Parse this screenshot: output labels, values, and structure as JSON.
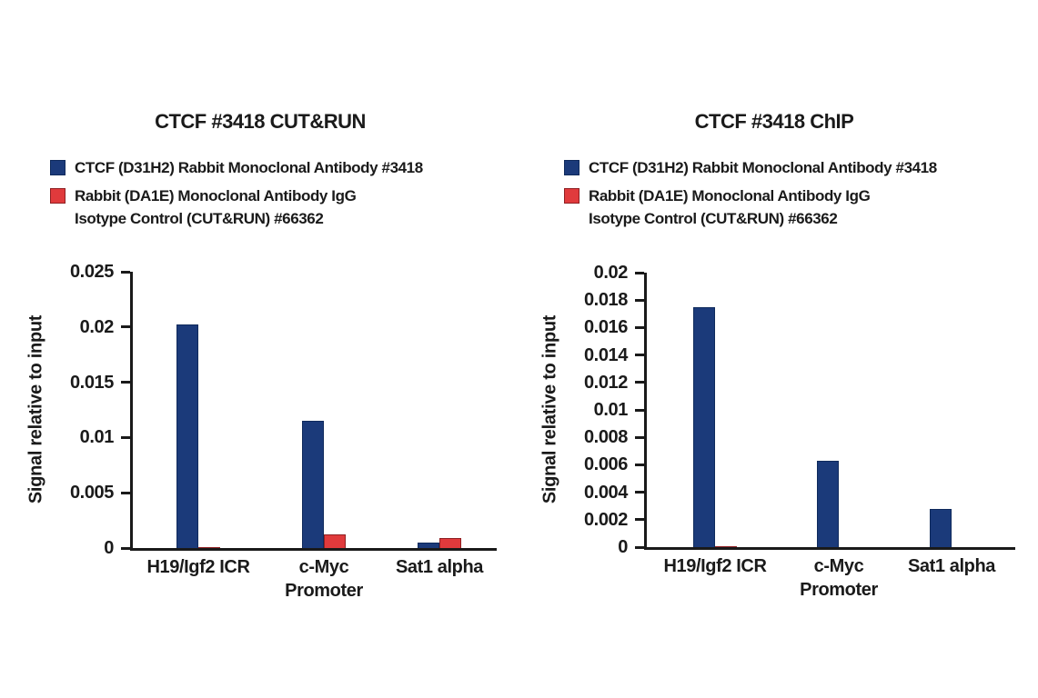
{
  "figure": {
    "background": "#ffffff",
    "axis_color": "#1a1a1a",
    "accent_blue": "#1b3a7a",
    "accent_red": "#e03a3c"
  },
  "legend": {
    "entries": [
      {
        "label": "CTCF (D31H2) Rabbit Monoclonal Antibody #3418",
        "color": "#1b3a7a"
      },
      {
        "label": "Rabbit (DA1E) Monoclonal Antibody IgG\nIsotype Control (CUT&RUN) #66362",
        "color": "#e03a3c"
      }
    ]
  },
  "chart_data": [
    {
      "type": "bar",
      "title": "CTCF #3418 CUT&RUN",
      "xlabel": "",
      "ylabel": "Signal relative to input",
      "categories": [
        "H19/Igf2 ICR",
        "c-Myc\nPromoter",
        "Sat1 alpha"
      ],
      "series": [
        {
          "name": "CTCF (D31H2) Rabbit Monoclonal Antibody #3418",
          "color": "#1b3a7a",
          "values": [
            0.0202,
            0.0115,
            0.0005
          ]
        },
        {
          "name": "Rabbit (DA1E) Monoclonal Antibody IgG Isotype Control (CUT&RUN) #66362",
          "color": "#e03a3c",
          "values": [
            5e-05,
            0.0012,
            0.0009
          ]
        }
      ],
      "ylim": [
        0,
        0.025
      ],
      "ytick_step": 0.005,
      "yticks": [
        "0",
        "0.005",
        "0.01",
        "0.015",
        "0.02",
        "0.025"
      ],
      "grid": false,
      "legend_position": "top-left"
    },
    {
      "type": "bar",
      "title": "CTCF #3418 ChIP",
      "xlabel": "",
      "ylabel": "Signal relative to input",
      "categories": [
        "H19/Igf2 ICR",
        "c-Myc\nPromoter",
        "Sat1 alpha"
      ],
      "series": [
        {
          "name": "CTCF (D31H2) Rabbit Monoclonal Antibody #3418",
          "color": "#1b3a7a",
          "values": [
            0.0175,
            0.0063,
            0.0028
          ]
        },
        {
          "name": "Rabbit (DA1E) Monoclonal Antibody IgG Isotype Control (CUT&RUN) #66362",
          "color": "#e03a3c",
          "values": [
            5e-05,
            0,
            0
          ]
        }
      ],
      "ylim": [
        0,
        0.02
      ],
      "ytick_step": 0.002,
      "yticks": [
        "0",
        "0.002",
        "0.004",
        "0.006",
        "0.008",
        "0.01",
        "0.012",
        "0.014",
        "0.016",
        "0.018",
        "0.02"
      ],
      "grid": false,
      "legend_position": "top-left"
    }
  ]
}
